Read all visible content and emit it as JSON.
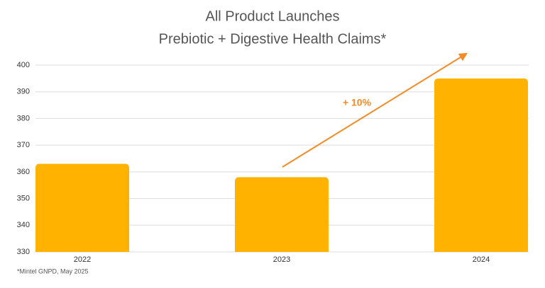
{
  "chart_data": {
    "type": "bar",
    "title": "All Product Launches",
    "subtitle": "Prebiotic + Digestive Health Claims*",
    "categories": [
      "2022",
      "2023",
      "2024"
    ],
    "values": [
      363,
      358,
      395
    ],
    "color": "#FFB300",
    "ylim": [
      330,
      400
    ],
    "yticks": [
      330,
      340,
      350,
      360,
      370,
      380,
      390,
      400
    ],
    "grid": true,
    "annotation": "+ 10%",
    "annotation_color": "#F28C28",
    "footnote": "*Mintel GNPD, May 2025"
  }
}
